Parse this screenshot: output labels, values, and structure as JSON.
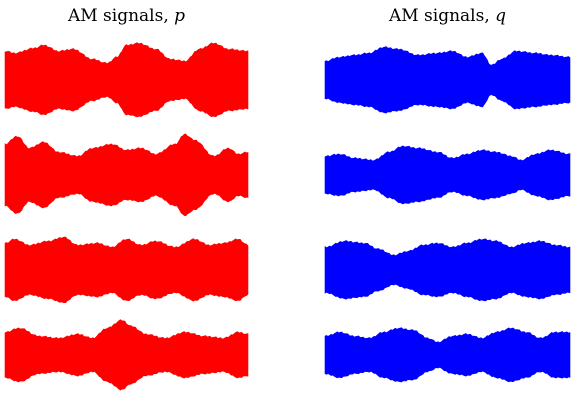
{
  "chart_data": [
    {
      "type": "area",
      "title_text": "AM signals, ",
      "title_var": "p",
      "color": "#ff0000",
      "series_count": 4
    },
    {
      "type": "area",
      "title_text": "AM signals, ",
      "title_var": "q",
      "color": "#0000ff",
      "series_count": 4
    }
  ]
}
